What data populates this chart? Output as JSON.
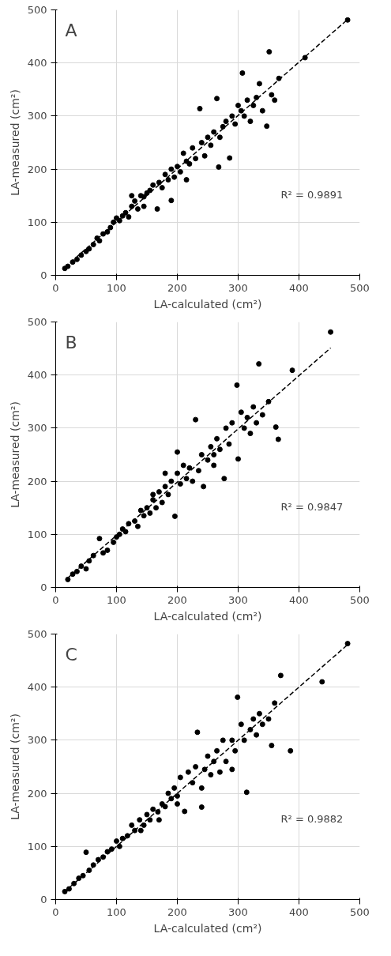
{
  "chart_data": [
    {
      "type": "scatter",
      "title": "A",
      "xlabel": "LA-calculated (cm²)",
      "ylabel": "LA-measured (cm²)",
      "annotations": [
        "R² = 0.9891"
      ],
      "xlim": [
        0,
        500
      ],
      "ylim": [
        0,
        500
      ],
      "xticks": [
        0,
        100,
        200,
        300,
        400,
        500
      ],
      "yticks": [
        0,
        100,
        200,
        300,
        400,
        500
      ],
      "grid": true,
      "marker": "circle",
      "series": [
        {
          "color": "#000000",
          "x": [
            15,
            20,
            28,
            35,
            42,
            50,
            55,
            62,
            68,
            72,
            78,
            85,
            90,
            95,
            100,
            105,
            110,
            115,
            120,
            125,
            130,
            135,
            140,
            145,
            150,
            155,
            160,
            167,
            170,
            175,
            180,
            185,
            190,
            195,
            200,
            205,
            210,
            215,
            220,
            225,
            230,
            237,
            240,
            245,
            250,
            255,
            260,
            265,
            268,
            275,
            280,
            286,
            290,
            295,
            300,
            305,
            307,
            310,
            315,
            320,
            325,
            330,
            335,
            340,
            347,
            351,
            355,
            360,
            367,
            410,
            480,
            125,
            145,
            190,
            215,
            270
          ],
          "values": [
            13,
            17,
            25,
            30,
            38,
            45,
            50,
            58,
            70,
            65,
            78,
            82,
            90,
            100,
            108,
            103,
            112,
            118,
            110,
            130,
            140,
            125,
            150,
            148,
            155,
            160,
            170,
            125,
            175,
            165,
            190,
            180,
            200,
            185,
            205,
            195,
            230,
            215,
            210,
            240,
            220,
            314,
            250,
            225,
            260,
            245,
            270,
            333,
            204,
            280,
            290,
            221,
            300,
            285,
            320,
            310,
            381,
            300,
            330,
            290,
            320,
            335,
            361,
            310,
            281,
            421,
            340,
            330,
            371,
            410,
            481,
            150,
            130,
            141,
            180,
            260
          ]
        },
        {
          "type": "line",
          "color": "#000000",
          "line_style": "dashed",
          "marker": "none",
          "x": [
            15,
            480
          ],
          "values": [
            15,
            482
          ]
        }
      ]
    },
    {
      "type": "scatter",
      "title": "B",
      "xlabel": "LA-calculated (cm²)",
      "ylabel": "LA-measured (cm²)",
      "annotations": [
        "R² = 0.9847"
      ],
      "xlim": [
        0,
        500
      ],
      "ylim": [
        0,
        500
      ],
      "xticks": [
        0,
        100,
        200,
        300,
        400,
        500
      ],
      "yticks": [
        0,
        100,
        200,
        300,
        400,
        500
      ],
      "grid": true,
      "marker": "circle",
      "series": [
        {
          "color": "#000000",
          "x": [
            20,
            28,
            35,
            42,
            50,
            55,
            62,
            72,
            78,
            85,
            95,
            100,
            105,
            110,
            115,
            120,
            130,
            135,
            140,
            145,
            150,
            155,
            160,
            165,
            170,
            175,
            180,
            185,
            190,
            196,
            200,
            205,
            210,
            215,
            220,
            230,
            235,
            240,
            243,
            250,
            255,
            260,
            265,
            270,
            277,
            280,
            285,
            290,
            298,
            300,
            305,
            310,
            315,
            320,
            325,
            330,
            334,
            340,
            350,
            362,
            366,
            389,
            452,
            160,
            180,
            200,
            225,
            260
          ],
          "values": [
            15,
            25,
            30,
            40,
            35,
            50,
            60,
            92,
            65,
            70,
            85,
            95,
            100,
            110,
            105,
            120,
            125,
            115,
            145,
            135,
            150,
            140,
            165,
            150,
            180,
            160,
            190,
            175,
            200,
            134,
            215,
            195,
            230,
            205,
            225,
            316,
            220,
            250,
            190,
            240,
            265,
            250,
            280,
            260,
            205,
            300,
            270,
            310,
            381,
            242,
            330,
            300,
            320,
            290,
            340,
            310,
            421,
            325,
            350,
            302,
            279,
            409,
            481,
            175,
            215,
            255,
            200,
            230
          ]
        },
        {
          "type": "line",
          "color": "#000000",
          "line_style": "dashed",
          "marker": "none",
          "x": [
            20,
            452
          ],
          "values": [
            18,
            451
          ]
        }
      ]
    },
    {
      "type": "scatter",
      "title": "C",
      "xlabel": "LA-calculated (cm²)",
      "ylabel": "LA-measured (cm²)",
      "annotations": [
        "R² = 0.9882"
      ],
      "xlim": [
        0,
        500
      ],
      "ylim": [
        0,
        500
      ],
      "xticks": [
        0,
        100,
        200,
        300,
        400,
        500
      ],
      "yticks": [
        0,
        100,
        200,
        300,
        400,
        500
      ],
      "grid": true,
      "marker": "circle",
      "series": [
        {
          "color": "#000000",
          "x": [
            15,
            22,
            30,
            38,
            45,
            50,
            55,
            62,
            70,
            78,
            85,
            92,
            100,
            105,
            110,
            118,
            125,
            130,
            138,
            145,
            150,
            155,
            160,
            168,
            175,
            180,
            185,
            190,
            195,
            200,
            205,
            212,
            218,
            225,
            230,
            233,
            240,
            245,
            250,
            255,
            260,
            265,
            270,
            275,
            280,
            290,
            295,
            299,
            305,
            310,
            314,
            320,
            325,
            330,
            335,
            340,
            350,
            355,
            360,
            370,
            386,
            438,
            480,
            140,
            170,
            200,
            240,
            290
          ],
          "values": [
            15,
            20,
            30,
            40,
            45,
            89,
            55,
            65,
            75,
            80,
            90,
            95,
            110,
            100,
            115,
            120,
            140,
            130,
            150,
            140,
            160,
            150,
            170,
            165,
            180,
            175,
            200,
            190,
            210,
            195,
            230,
            166,
            240,
            220,
            250,
            315,
            174,
            245,
            270,
            235,
            260,
            280,
            240,
            300,
            260,
            300,
            280,
            381,
            330,
            300,
            202,
            320,
            340,
            310,
            350,
            330,
            340,
            290,
            370,
            422,
            280,
            410,
            482,
            130,
            150,
            180,
            210,
            245
          ]
        },
        {
          "type": "line",
          "color": "#000000",
          "line_style": "dashed",
          "marker": "none",
          "x": [
            15,
            480
          ],
          "values": [
            15,
            480
          ]
        }
      ]
    }
  ]
}
